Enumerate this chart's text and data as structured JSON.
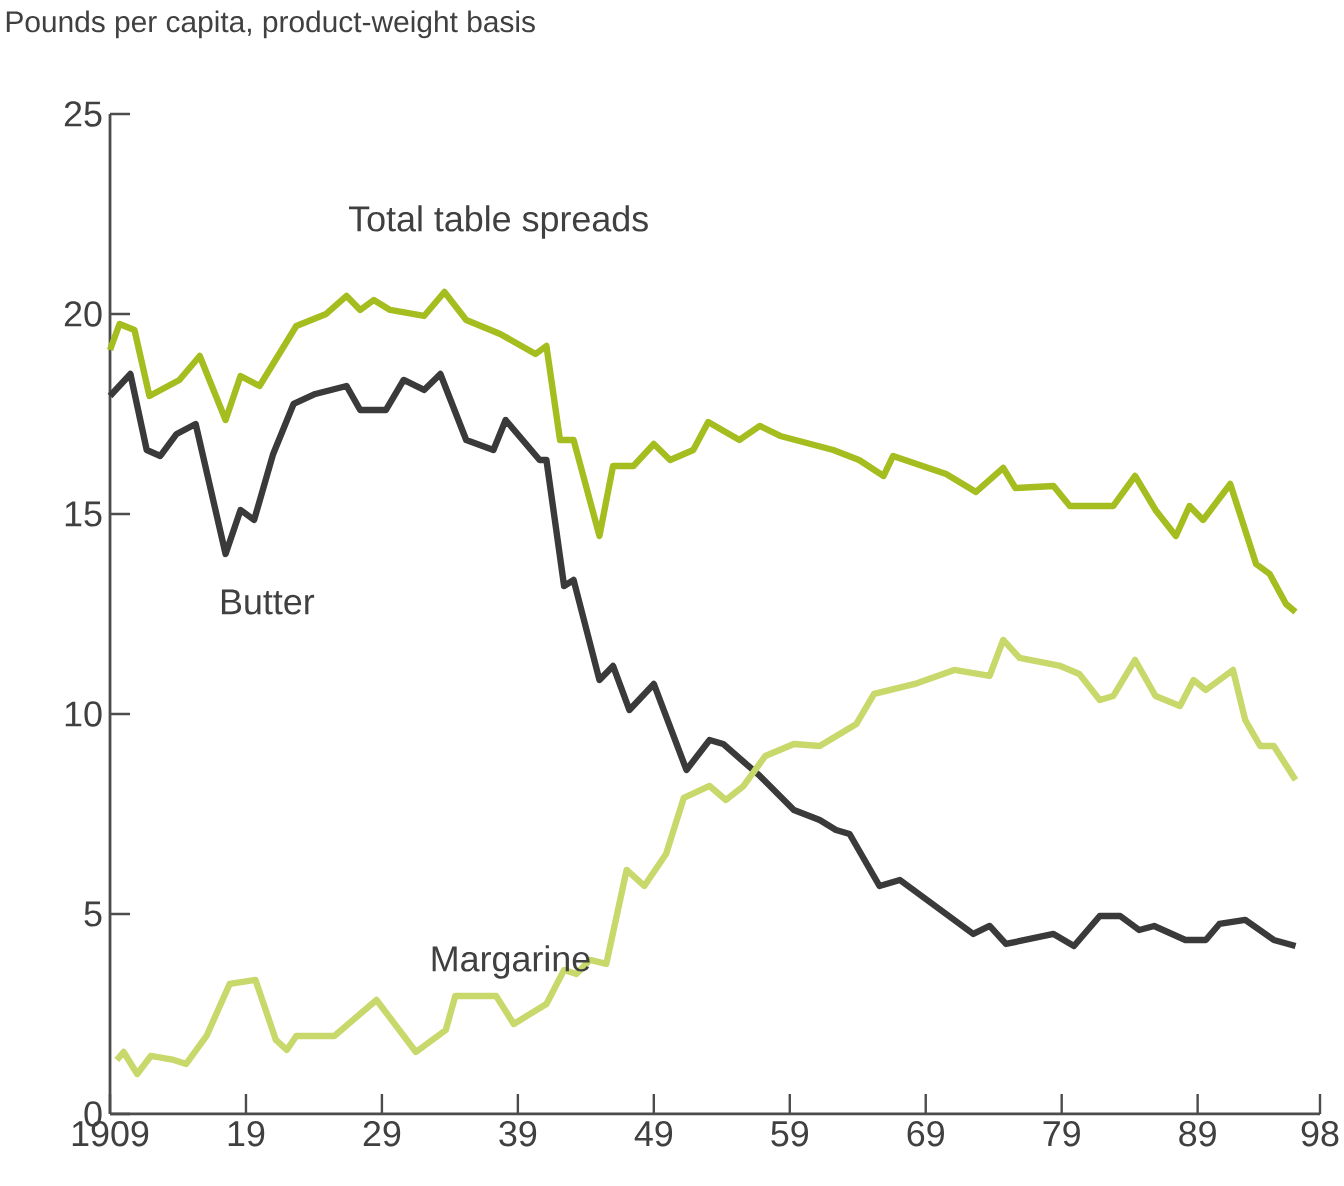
{
  "chart_data": {
    "type": "line",
    "ylabel": "Pounds per capita, product-weight basis",
    "xlim": [
      1909,
      1998
    ],
    "ylim": [
      0,
      25
    ],
    "xticks": [
      {
        "value": 1909,
        "label": "1909"
      },
      {
        "value": 1919,
        "label": "19"
      },
      {
        "value": 1929,
        "label": "29"
      },
      {
        "value": 1939,
        "label": "39"
      },
      {
        "value": 1949,
        "label": "49"
      },
      {
        "value": 1959,
        "label": "59"
      },
      {
        "value": 1969,
        "label": "69"
      },
      {
        "value": 1979,
        "label": "79"
      },
      {
        "value": 1989,
        "label": "89"
      },
      {
        "value": 1998,
        "label": "98"
      }
    ],
    "yticks": [
      0,
      5,
      10,
      15,
      20,
      25
    ],
    "grid": false,
    "legend": false,
    "marker": "none",
    "line_style": "solid",
    "series": [
      {
        "name": "Total table spreads",
        "color": "#a5bd1f",
        "x": [
          1909,
          1909.7,
          1910.8,
          1911.9,
          1914.1,
          1915.6,
          1917.5,
          1918.6,
          1920,
          1922.7,
          1924.9,
          1926.4,
          1927.4,
          1928.4,
          1929.6,
          1932.1,
          1933.6,
          1935.2,
          1937.7,
          1940.3,
          1941.1,
          1942.1,
          1943.1,
          1945,
          1946,
          1947.5,
          1949,
          1950.2,
          1951.9,
          1953,
          1955.3,
          1956.8,
          1958.3,
          1962.2,
          1964.1,
          1965.9,
          1966.6,
          1970.5,
          1972.7,
          1974.7,
          1975.6,
          1978.4,
          1979.6,
          1982.8,
          1984.4,
          1985.9,
          1987.4,
          1988.4,
          1989.4,
          1991.4,
          1993.3,
          1994.3,
          1995.5,
          1996.2
        ],
        "values": [
          19.1,
          19.75,
          19.6,
          17.95,
          18.35,
          18.95,
          17.35,
          18.45,
          18.2,
          19.7,
          20.0,
          20.45,
          20.1,
          20.35,
          20.1,
          19.95,
          20.55,
          19.85,
          19.5,
          19.0,
          19.2,
          16.85,
          16.85,
          14.45,
          16.2,
          16.2,
          16.75,
          16.35,
          16.6,
          17.3,
          16.85,
          17.2,
          16.95,
          16.6,
          16.35,
          15.95,
          16.45,
          16.0,
          15.55,
          16.15,
          15.65,
          15.7,
          15.2,
          15.2,
          15.95,
          15.1,
          14.45,
          15.2,
          14.85,
          15.75,
          13.75,
          13.5,
          12.75,
          12.55
        ]
      },
      {
        "name": "Butter",
        "color": "#3a3a3a",
        "x": [
          1909,
          1910.5,
          1911.7,
          1912.7,
          1913.9,
          1915.3,
          1917.5,
          1918.6,
          1919.6,
          1921,
          1922.5,
          1924.1,
          1926.4,
          1927.4,
          1929.3,
          1930.6,
          1932.1,
          1933.3,
          1935.2,
          1937.2,
          1938.1,
          1940.6,
          1941.1,
          1942.4,
          1943.1,
          1945,
          1946,
          1947.2,
          1949,
          1951.4,
          1953.1,
          1954.1,
          1956.8,
          1959.3,
          1961.2,
          1962.4,
          1963.4,
          1965.6,
          1967.1,
          1972.5,
          1973.7,
          1974.9,
          1978.4,
          1979.9,
          1981.8,
          1983.3,
          1984.7,
          1985.8,
          1988.1,
          1989.6,
          1990.6,
          1992.5,
          1994.6,
          1996.2
        ],
        "values": [
          17.95,
          18.5,
          16.6,
          16.45,
          17.0,
          17.25,
          14.0,
          15.1,
          14.85,
          16.5,
          17.75,
          18.0,
          18.2,
          17.6,
          17.6,
          18.35,
          18.1,
          18.5,
          16.85,
          16.6,
          17.35,
          16.35,
          16.35,
          13.2,
          13.35,
          10.85,
          11.2,
          10.1,
          10.75,
          8.6,
          9.35,
          9.25,
          8.45,
          7.6,
          7.35,
          7.1,
          7.0,
          5.7,
          5.85,
          4.5,
          4.7,
          4.25,
          4.5,
          4.2,
          4.95,
          4.95,
          4.6,
          4.7,
          4.35,
          4.35,
          4.75,
          4.85,
          4.35,
          4.2
        ]
      },
      {
        "name": "Margarine",
        "color": "#c9d86b",
        "x": [
          1909.5,
          1910,
          1911,
          1912,
          1913.7,
          1914.6,
          1916.1,
          1917.8,
          1919.7,
          1921.2,
          1922,
          1922.7,
          1925.5,
          1928.6,
          1931.5,
          1933.7,
          1934.4,
          1937.4,
          1938.7,
          1941.1,
          1942.4,
          1943.3,
          1944.3,
          1945.5,
          1947,
          1948.3,
          1949.9,
          1951.2,
          1953.1,
          1954.3,
          1955.6,
          1957.2,
          1959.3,
          1961.2,
          1963.9,
          1965.2,
          1968.2,
          1971.1,
          1973.7,
          1974.7,
          1975.9,
          1978.9,
          1980.3,
          1981.8,
          1982.8,
          1984.4,
          1985.9,
          1987.7,
          1988.7,
          1989.6,
          1991.6,
          1992.5,
          1993.6,
          1994.6,
          1996.2
        ],
        "values": [
          1.35,
          1.55,
          1.0,
          1.45,
          1.35,
          1.25,
          1.95,
          3.25,
          3.35,
          1.85,
          1.6,
          1.95,
          1.95,
          2.85,
          1.55,
          2.1,
          2.95,
          2.95,
          2.25,
          2.75,
          3.6,
          3.5,
          3.85,
          3.75,
          6.1,
          5.7,
          6.5,
          7.9,
          8.2,
          7.85,
          8.2,
          8.95,
          9.25,
          9.2,
          9.75,
          10.5,
          10.75,
          11.1,
          10.95,
          11.85,
          11.4,
          11.2,
          11.0,
          10.35,
          10.45,
          11.35,
          10.45,
          10.2,
          10.85,
          10.6,
          11.1,
          9.85,
          9.2,
          9.2,
          8.35
        ]
      }
    ]
  }
}
